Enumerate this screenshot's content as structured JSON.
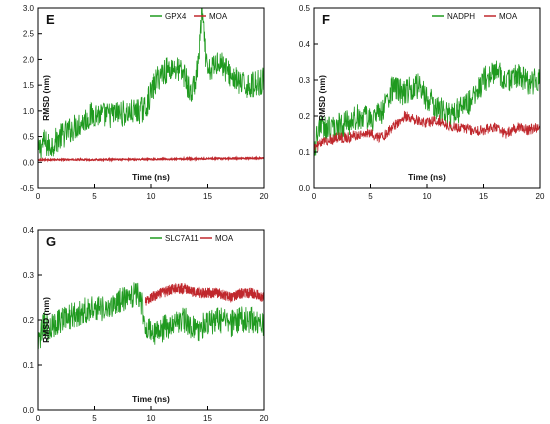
{
  "chart_data": [
    {
      "type": "line",
      "panel_label": "E",
      "xlabel": "Time (ns)",
      "ylabel": "RMSD (nm)",
      "xlim": [
        0,
        20
      ],
      "ylim": [
        -0.5,
        3.0
      ],
      "xticks": [
        "0",
        "5",
        "10",
        "15",
        "20"
      ],
      "yticks": [
        "-0.5",
        "0.0",
        "0.5",
        "1.0",
        "1.5",
        "2.0",
        "2.5",
        "3.0"
      ],
      "legend_position": "top-right",
      "series": [
        {
          "name": "GPX4",
          "color": "#1f9a1f",
          "x": [
            0,
            0.5,
            1,
            2,
            3,
            4,
            5,
            6,
            7,
            8,
            9,
            9.5,
            10,
            10.5,
            11,
            12,
            13,
            13.5,
            14,
            14.3,
            14.5,
            14.7,
            15,
            15.5,
            16,
            17,
            18,
            19,
            20
          ],
          "y": [
            0.2,
            0.4,
            0.3,
            0.5,
            0.65,
            0.8,
            0.95,
            0.9,
            0.95,
            0.95,
            1.0,
            1.05,
            1.35,
            1.6,
            1.75,
            1.85,
            1.7,
            1.3,
            1.6,
            2.2,
            3.0,
            2.4,
            1.7,
            1.85,
            2.0,
            1.7,
            1.5,
            1.5,
            1.6
          ]
        },
        {
          "name": "MOA",
          "color": "#c0282d",
          "x": [
            0,
            5,
            10,
            15,
            20
          ],
          "y": [
            0.05,
            0.05,
            0.06,
            0.07,
            0.08
          ]
        }
      ]
    },
    {
      "type": "line",
      "panel_label": "F",
      "xlabel": "Time (ns)",
      "ylabel": "RMSD (nm)",
      "xlim": [
        0,
        20
      ],
      "ylim": [
        0.0,
        0.5
      ],
      "xticks": [
        "0",
        "5",
        "10",
        "15",
        "20"
      ],
      "yticks": [
        "0.0",
        "0.1",
        "0.2",
        "0.3",
        "0.4",
        "0.5"
      ],
      "legend_position": "top-right",
      "series": [
        {
          "name": "NADPH",
          "color": "#1f9a1f",
          "x": [
            0,
            0.5,
            1,
            2,
            3,
            4,
            5,
            6,
            7,
            8,
            9,
            10,
            11,
            12,
            13,
            14,
            15,
            16,
            17,
            18,
            19,
            20
          ],
          "y": [
            0.1,
            0.18,
            0.16,
            0.17,
            0.18,
            0.2,
            0.19,
            0.21,
            0.28,
            0.26,
            0.29,
            0.25,
            0.22,
            0.2,
            0.22,
            0.24,
            0.3,
            0.32,
            0.3,
            0.31,
            0.29,
            0.3
          ]
        },
        {
          "name": "MOA",
          "color": "#c0282d",
          "x": [
            0,
            1,
            2,
            3,
            4,
            5,
            6,
            7,
            8,
            9,
            10,
            11,
            12,
            13,
            14,
            15,
            16,
            17,
            18,
            19,
            20
          ],
          "y": [
            0.11,
            0.13,
            0.14,
            0.14,
            0.15,
            0.15,
            0.14,
            0.17,
            0.2,
            0.19,
            0.18,
            0.19,
            0.17,
            0.17,
            0.16,
            0.16,
            0.17,
            0.15,
            0.17,
            0.16,
            0.17
          ]
        }
      ]
    },
    {
      "type": "line",
      "panel_label": "G",
      "xlabel": "Time (ns)",
      "ylabel": "RMSD (nm)",
      "xlim": [
        0,
        20
      ],
      "ylim": [
        0.0,
        0.4
      ],
      "xticks": [
        "0",
        "5",
        "10",
        "15",
        "20"
      ],
      "yticks": [
        "0.0",
        "0.1",
        "0.2",
        "0.3",
        "0.4"
      ],
      "legend_position": "top-right",
      "series": [
        {
          "name": "SLC7A11",
          "color": "#1f9a1f",
          "x": [
            0,
            0.5,
            1,
            2,
            3,
            4,
            5,
            6,
            7,
            8,
            9,
            9.5,
            10,
            11,
            12,
            13,
            14,
            15,
            16,
            17,
            18,
            19,
            20
          ],
          "y": [
            0.14,
            0.19,
            0.18,
            0.2,
            0.21,
            0.22,
            0.23,
            0.22,
            0.24,
            0.25,
            0.26,
            0.19,
            0.17,
            0.18,
            0.19,
            0.2,
            0.18,
            0.19,
            0.2,
            0.19,
            0.2,
            0.2,
            0.19
          ]
        },
        {
          "name": "MOA",
          "color": "#c0282d",
          "x": [
            9.5,
            10,
            11,
            12,
            13,
            14,
            15,
            16,
            17,
            18,
            19,
            20
          ],
          "y": [
            0.24,
            0.25,
            0.26,
            0.27,
            0.27,
            0.26,
            0.26,
            0.26,
            0.25,
            0.26,
            0.26,
            0.25
          ]
        }
      ]
    }
  ]
}
